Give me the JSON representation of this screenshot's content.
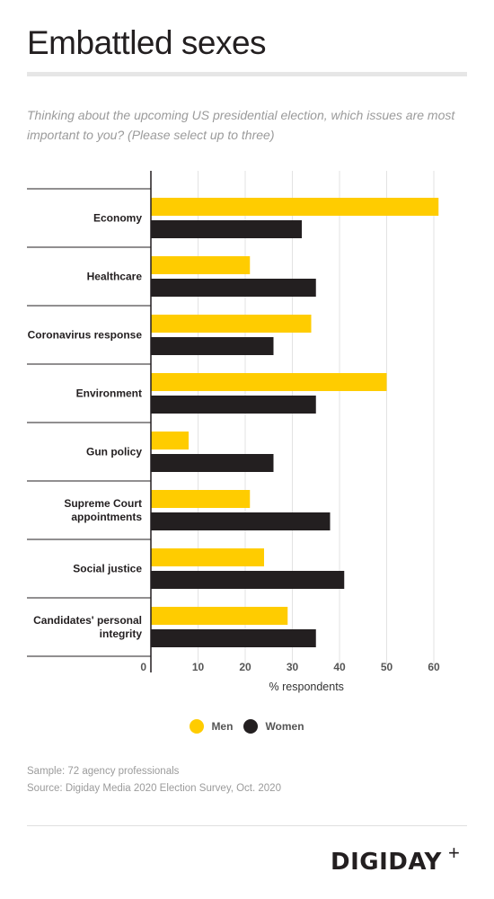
{
  "title": "Embattled sexes",
  "subtitle": "Thinking about the upcoming US presidential election, which issues are most important to you? (Please select up to three)",
  "legend": {
    "men": "Men",
    "women": "Women"
  },
  "colors": {
    "men": "#ffcc00",
    "women": "#231f20",
    "grid": "#e3e3e3"
  },
  "notes": {
    "sample": "Sample: 72 agency professionals",
    "source": "Source: Digiday Media 2020 Election Survey, Oct. 2020"
  },
  "logo": {
    "text": "DIGIDAY",
    "plus": "+"
  },
  "chart_data": {
    "type": "bar",
    "orientation": "horizontal",
    "categories": [
      "Economy",
      "Healthcare",
      "Coronavirus response",
      "Environment",
      "Gun policy",
      "Supreme Court appointments",
      "Social justice",
      "Candidates' personal integrity"
    ],
    "series": [
      {
        "name": "Men",
        "values": [
          61,
          21,
          34,
          50,
          8,
          21,
          24,
          29
        ]
      },
      {
        "name": "Women",
        "values": [
          32,
          35,
          26,
          35,
          26,
          38,
          41,
          35
        ]
      }
    ],
    "xlabel": "% respondents",
    "xlim": [
      0,
      64
    ],
    "xticks": [
      0,
      10,
      20,
      30,
      40,
      50,
      60
    ],
    "grid": true,
    "legend_position": "bottom"
  }
}
